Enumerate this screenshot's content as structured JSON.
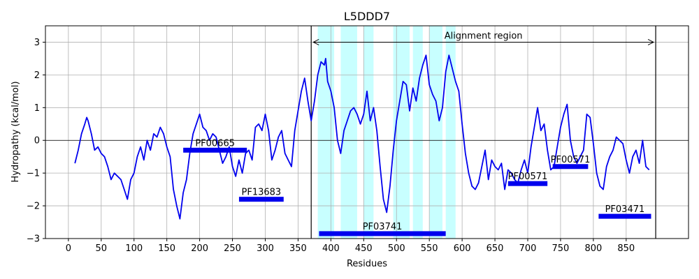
{
  "chart_data": {
    "type": "line",
    "title": "L5DDD7",
    "xlabel": "Residues",
    "ylabel": "Hydropathy (kcal/mol)",
    "xlim": [
      -35,
      945
    ],
    "ylim": [
      -3,
      3.5
    ],
    "xticks": [
      0,
      50,
      100,
      150,
      200,
      250,
      300,
      350,
      400,
      450,
      500,
      550,
      600,
      650,
      700,
      750,
      800,
      850
    ],
    "yticks": [
      -3,
      -2,
      -1,
      0,
      1,
      2,
      3
    ],
    "grid": true,
    "colors": {
      "line": "#0000ee",
      "domain": "#0000ee",
      "highlight": "#c8ffff",
      "axis": "#000000",
      "grid": "#b0b0b0"
    },
    "hydropathy_x": [
      10,
      15,
      20,
      25,
      28,
      30,
      35,
      40,
      45,
      50,
      55,
      60,
      65,
      70,
      75,
      80,
      85,
      90,
      95,
      100,
      105,
      110,
      115,
      120,
      125,
      130,
      135,
      140,
      145,
      150,
      155,
      160,
      165,
      170,
      175,
      180,
      185,
      190,
      195,
      200,
      205,
      210,
      215,
      220,
      225,
      230,
      235,
      240,
      245,
      250,
      255,
      260,
      265,
      270,
      275,
      280,
      285,
      290,
      295,
      300,
      305,
      310,
      315,
      320,
      325,
      330,
      335,
      340,
      345,
      350,
      355,
      360,
      365,
      370,
      375,
      380,
      385,
      390,
      392,
      395,
      400,
      405,
      410,
      415,
      420,
      425,
      430,
      435,
      440,
      445,
      450,
      455,
      460,
      465,
      470,
      475,
      480,
      485,
      490,
      495,
      500,
      505,
      510,
      515,
      520,
      525,
      530,
      535,
      540,
      545,
      550,
      555,
      560,
      565,
      570,
      575,
      580,
      585,
      590,
      595,
      600,
      605,
      610,
      615,
      620,
      625,
      630,
      635,
      640,
      645,
      650,
      655,
      660,
      665,
      670,
      675,
      680,
      685,
      690,
      695,
      700,
      705,
      710,
      715,
      720,
      725,
      730,
      735,
      740,
      745,
      750,
      755,
      760,
      765,
      770,
      775,
      780,
      785,
      790,
      795,
      800,
      805,
      810,
      815,
      820,
      825,
      830,
      835,
      840,
      845,
      850,
      855,
      860,
      865,
      870,
      875,
      880,
      885,
      890
    ],
    "hydropathy_y": [
      -0.7,
      -0.3,
      0.2,
      0.5,
      0.7,
      0.6,
      0.2,
      -0.3,
      -0.2,
      -0.4,
      -0.5,
      -0.8,
      -1.2,
      -1.0,
      -1.1,
      -1.2,
      -1.5,
      -1.8,
      -1.2,
      -1.0,
      -0.5,
      -0.2,
      -0.6,
      0.0,
      -0.3,
      0.2,
      0.1,
      0.4,
      0.2,
      -0.2,
      -0.5,
      -1.5,
      -2.0,
      -2.4,
      -1.6,
      -1.2,
      -0.4,
      0.2,
      0.5,
      0.8,
      0.4,
      0.3,
      0.0,
      0.2,
      0.1,
      -0.3,
      -0.7,
      -0.5,
      -0.2,
      -0.8,
      -1.1,
      -0.6,
      -1.0,
      -0.4,
      -0.3,
      -0.6,
      0.4,
      0.5,
      0.3,
      0.8,
      0.3,
      -0.6,
      -0.3,
      0.1,
      0.3,
      -0.4,
      -0.6,
      -0.8,
      0.3,
      0.9,
      1.5,
      1.9,
      1.2,
      0.6,
      1.2,
      2.0,
      2.4,
      2.3,
      2.5,
      1.8,
      1.5,
      1.0,
      0.0,
      -0.4,
      0.3,
      0.6,
      0.9,
      1.0,
      0.8,
      0.5,
      0.8,
      1.5,
      0.6,
      1.0,
      0.3,
      -0.8,
      -1.8,
      -2.2,
      -1.4,
      -0.3,
      0.6,
      1.2,
      1.8,
      1.7,
      0.9,
      1.6,
      1.2,
      1.9,
      2.3,
      2.6,
      1.7,
      1.4,
      1.2,
      0.6,
      1.0,
      2.1,
      2.6,
      2.2,
      1.8,
      1.5,
      0.5,
      -0.4,
      -1.0,
      -1.4,
      -1.5,
      -1.3,
      -0.8,
      -0.3,
      -1.2,
      -0.6,
      -0.8,
      -0.9,
      -0.7,
      -1.5,
      -0.9,
      -1.0,
      -1.2,
      -1.3,
      -0.9,
      -0.6,
      -1.0,
      -0.2,
      0.4,
      1.0,
      0.3,
      0.5,
      -0.3,
      -0.9,
      -0.8,
      -0.2,
      0.4,
      0.8,
      1.1,
      0.0,
      -0.5,
      -0.7,
      -0.5,
      -0.3,
      0.8,
      0.7,
      -0.1,
      -1.0,
      -1.4,
      -1.5,
      -0.8,
      -0.5,
      -0.3,
      0.1,
      0.0,
      -0.1,
      -0.6,
      -1.0,
      -0.5,
      -0.3,
      -0.7,
      0.0,
      -0.8,
      -0.9
    ],
    "highlight_regions": [
      [
        380,
        405
      ],
      [
        415,
        440
      ],
      [
        450,
        465
      ],
      [
        495,
        520
      ],
      [
        525,
        540
      ],
      [
        550,
        570
      ],
      [
        575,
        590
      ]
    ],
    "vertical_lines": [
      370,
      895
    ],
    "annotation": {
      "text": "Alignment region",
      "from": 370,
      "to": 895,
      "y": 3.0
    },
    "domains": [
      {
        "name": "PF00665",
        "start": 175,
        "end": 272,
        "y": -0.3
      },
      {
        "name": "PF13683",
        "start": 260,
        "end": 328,
        "y": -1.8
      },
      {
        "name": "PF03741",
        "start": 382,
        "end": 575,
        "y": -2.85
      },
      {
        "name": "PF00571",
        "start": 670,
        "end": 730,
        "y": -1.32
      },
      {
        "name": "PF00571",
        "start": 738,
        "end": 792,
        "y": -0.8
      },
      {
        "name": "PF03471",
        "start": 808,
        "end": 888,
        "y": -2.32
      }
    ]
  }
}
